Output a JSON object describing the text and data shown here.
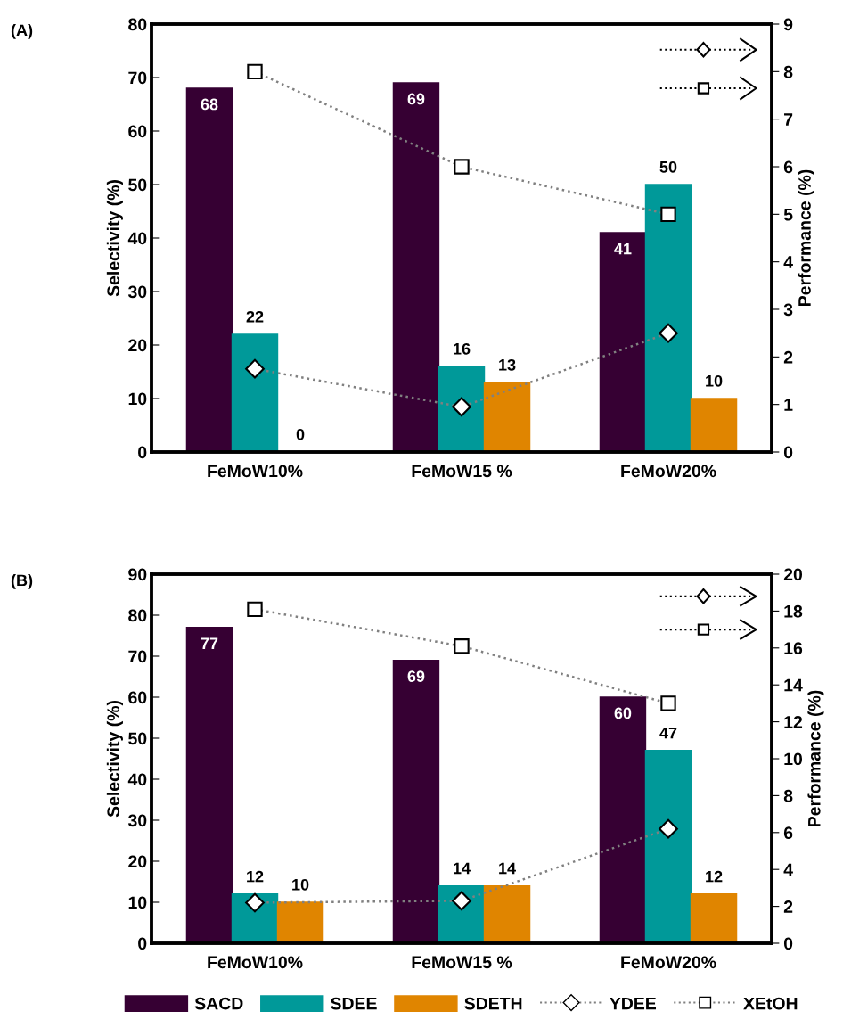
{
  "chart_data": [
    {
      "type": "bar",
      "title": "(A)",
      "categories": [
        "FeMoW10%",
        "FeMoW15 %",
        "FeMoW20%"
      ],
      "ylabel": "Selectivity (%)",
      "y2label": "Performance (%)",
      "ylim": [
        0,
        80
      ],
      "yticks": [
        0,
        10,
        20,
        30,
        40,
        50,
        60,
        70,
        80
      ],
      "y2lim": [
        0,
        9
      ],
      "y2ticks": [
        0,
        1,
        2,
        3,
        4,
        5,
        6,
        7,
        8,
        9
      ],
      "grid": false,
      "legend": "bottom",
      "series": [
        {
          "name": "SACD",
          "color": "#360033",
          "values": [
            68,
            69,
            41
          ],
          "value_labels": [
            "68",
            "69",
            "41"
          ]
        },
        {
          "name": "SDEE",
          "color": "#009999",
          "values": [
            22,
            16,
            50
          ],
          "value_labels": [
            "22",
            "16",
            "50"
          ]
        },
        {
          "name": "SDETH",
          "color": "#e08500",
          "values": [
            0,
            13,
            10
          ],
          "value_labels": [
            "0",
            "13",
            "10"
          ]
        },
        {
          "name": "YDEE",
          "type": "line",
          "axis": "y2",
          "color": "#808080",
          "marker": "diamond",
          "line_style": "dotted",
          "values": [
            1.75,
            0.95,
            2.5
          ]
        },
        {
          "name": "XEtOH",
          "type": "line",
          "axis": "y2",
          "color": "#808080",
          "marker": "square",
          "line_style": "dotted",
          "values": [
            8,
            6,
            5
          ]
        }
      ]
    },
    {
      "type": "bar",
      "title": "(B)",
      "categories": [
        "FeMoW10%",
        "FeMoW15 %",
        "FeMoW20%"
      ],
      "ylabel": "Selectivity (%)",
      "y2label": "Performance (%)",
      "ylim": [
        0,
        90
      ],
      "yticks": [
        0,
        10,
        20,
        30,
        40,
        50,
        60,
        70,
        80,
        90
      ],
      "y2lim": [
        0,
        20
      ],
      "y2ticks": [
        0,
        2,
        4,
        6,
        8,
        10,
        12,
        14,
        16,
        18,
        20
      ],
      "grid": false,
      "legend": "bottom",
      "series": [
        {
          "name": "SACD",
          "color": "#360033",
          "values": [
            77,
            69,
            60
          ],
          "value_labels": [
            "77",
            "69",
            "60"
          ]
        },
        {
          "name": "SDEE",
          "color": "#009999",
          "values": [
            12,
            14,
            47
          ],
          "value_labels": [
            "12",
            "14",
            "47"
          ]
        },
        {
          "name": "SDETH",
          "color": "#e08500",
          "values": [
            10,
            14,
            12
          ],
          "value_labels": [
            "10",
            "14",
            "12"
          ]
        },
        {
          "name": "YDEE",
          "type": "line",
          "axis": "y2",
          "color": "#808080",
          "marker": "diamond",
          "line_style": "dotted",
          "values": [
            2.2,
            2.3,
            6.2
          ]
        },
        {
          "name": "XEtOH",
          "type": "line",
          "axis": "y2",
          "color": "#808080",
          "marker": "square",
          "line_style": "dotted",
          "values": [
            18.1,
            16.1,
            13.0
          ]
        }
      ]
    }
  ]
}
